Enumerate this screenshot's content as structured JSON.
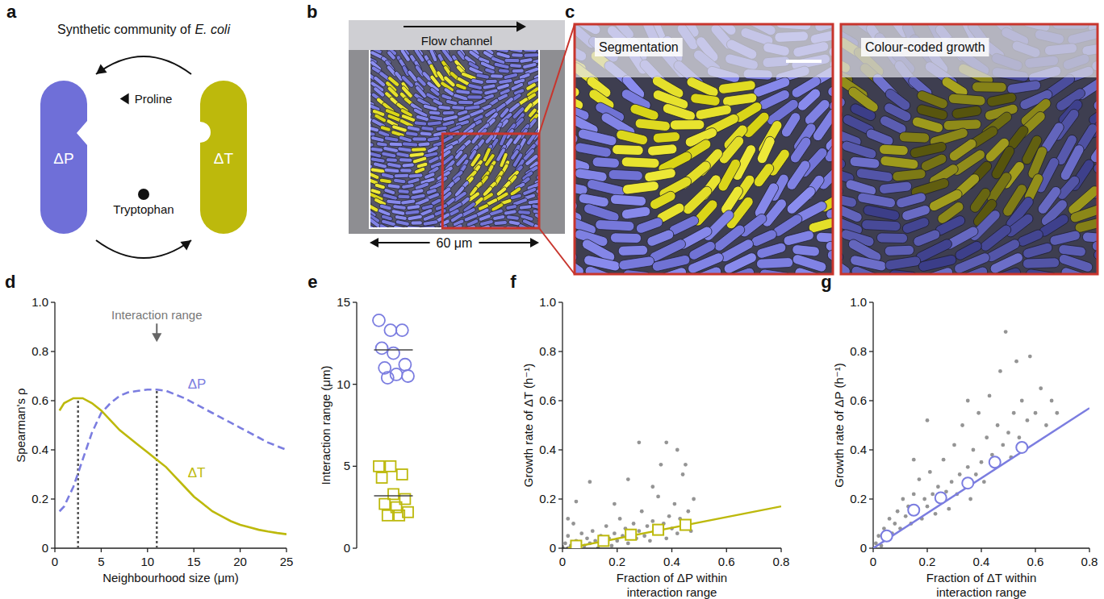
{
  "figure": {
    "panel_a": {
      "panel_label": "a",
      "title": "Synthetic community of",
      "organism": "E. coli",
      "nodes": [
        {
          "label": "ΔP",
          "color": "#6f6fd8"
        },
        {
          "label": "ΔT",
          "color": "#bdb90c"
        }
      ],
      "edges": [
        {
          "label": "Proline",
          "from": 1,
          "to": 0
        },
        {
          "label": "Tryptophan",
          "from": 0,
          "to": 1
        }
      ]
    },
    "panel_b": {
      "panel_label": "b",
      "channel_label": "Flow channel",
      "scale_label": "60 μm"
    },
    "panel_c": {
      "panel_label": "c",
      "views": [
        "Segmentation",
        "Colour-coded growth"
      ]
    }
  },
  "chart_data": [
    {
      "panel_label": "d",
      "type": "line",
      "x_label": "Neighbourhood size (μm)",
      "y_label": "Spearman's ρ",
      "x": [
        0.5,
        1,
        2,
        3,
        4,
        5,
        6,
        7,
        8,
        9,
        10,
        11,
        12,
        13,
        14,
        15,
        16,
        17,
        18,
        19,
        20,
        21,
        22,
        23,
        24,
        25
      ],
      "series": [
        {
          "name": "ΔP",
          "color": "#7b7de0",
          "line_style": "dashed",
          "values": [
            0.15,
            0.17,
            0.25,
            0.36,
            0.47,
            0.55,
            0.59,
            0.62,
            0.635,
            0.64,
            0.645,
            0.645,
            0.64,
            0.625,
            0.61,
            0.59,
            0.57,
            0.55,
            0.53,
            0.51,
            0.49,
            0.47,
            0.45,
            0.43,
            0.415,
            0.4
          ]
        },
        {
          "name": "ΔT",
          "color": "#bdb90c",
          "line_style": "solid",
          "values": [
            0.56,
            0.59,
            0.61,
            0.61,
            0.59,
            0.56,
            0.52,
            0.48,
            0.45,
            0.42,
            0.39,
            0.36,
            0.33,
            0.29,
            0.25,
            0.21,
            0.18,
            0.15,
            0.13,
            0.11,
            0.095,
            0.085,
            0.075,
            0.068,
            0.062,
            0.057
          ]
        }
      ],
      "xlim": [
        0,
        25
      ],
      "ylim": [
        0,
        1
      ],
      "xticks": [
        0,
        5,
        10,
        15,
        20,
        25
      ],
      "yticks": [
        0,
        0.2,
        0.4,
        0.6,
        0.8,
        {
          "value": 1,
          "label": "1.0"
        }
      ],
      "annotations": [
        {
          "text": "Interaction range",
          "x": 11,
          "y": 0.93
        }
      ],
      "reference_lines": [
        {
          "x": 2.5,
          "top": 0.61
        },
        {
          "x": 11,
          "top": 0.645
        }
      ]
    },
    {
      "panel_label": "e",
      "type": "strip",
      "y_label": "Interaction range (μm)",
      "ylim": [
        0,
        15
      ],
      "yticks": [
        0,
        5,
        10,
        15
      ],
      "tick_labels": "y",
      "series": [
        {
          "color": "#7b7de0",
          "marker": "circle",
          "values": [
            13.9,
            13.3,
            13.3,
            12.2,
            11.9,
            11.2,
            11.0,
            10.6,
            10.5,
            10.4
          ],
          "median": 12.1
        },
        {
          "color": "#bdb90c",
          "marker": "square",
          "values": [
            5.0,
            5.0,
            4.5,
            4.3,
            3.3,
            3.0,
            2.7,
            2.5,
            2.2,
            2.0,
            2.0
          ],
          "median": 3.2
        }
      ]
    },
    {
      "panel_label": "f",
      "type": "scatter",
      "x_label": "Fraction of ΔP within interaction range",
      "y_label": "Growth rate of ΔT (h⁻¹)",
      "xlim": [
        0,
        0.8
      ],
      "ylim": [
        0,
        1
      ],
      "xticks": [
        0,
        0.2,
        0.4,
        0.6,
        0.8
      ],
      "yticks": [
        0,
        0.2,
        0.4,
        0.6,
        0.8,
        {
          "value": 1,
          "label": "1.0"
        }
      ],
      "series": [
        {
          "type": "scatter",
          "marker": "dot",
          "color": "#000000",
          "x": [
            0,
            0.01,
            0.02,
            0.02,
            0.03,
            0.04,
            0.05,
            0.05,
            0.06,
            0.07,
            0.08,
            0.09,
            0.1,
            0.11,
            0.12,
            0.13,
            0.14,
            0.15,
            0.16,
            0.17,
            0.18,
            0.19,
            0.2,
            0.21,
            0.22,
            0.23,
            0.24,
            0.25,
            0.26,
            0.27,
            0.28,
            0.29,
            0.3,
            0.31,
            0.32,
            0.33,
            0.34,
            0.35,
            0.36,
            0.37,
            0.38,
            0.38,
            0.39,
            0.4,
            0.41,
            0.42,
            0.43,
            0.44,
            0.45,
            0.46,
            0.47,
            0.48,
            0.28,
            0.33,
            0.36,
            0.42,
            0.45,
            0.1,
            0.05,
            0.24,
            0.02,
            0.19
          ],
          "values": [
            0.005,
            0.02,
            0,
            0.05,
            0.01,
            0.1,
            0,
            0.03,
            0.02,
            0.06,
            0.01,
            0.04,
            0.02,
            0.07,
            0.03,
            0,
            0.05,
            0.02,
            0.09,
            0.04,
            0.01,
            0.06,
            0.03,
            0.12,
            0.05,
            0.08,
            0.02,
            0.06,
            0.1,
            0.04,
            0.07,
            0.15,
            0.05,
            0.09,
            0.03,
            0.11,
            0.07,
            0.21,
            0.06,
            0.1,
            0.43,
            0.04,
            0.13,
            0.08,
            0.18,
            0.06,
            0.12,
            0.3,
            0.09,
            0.15,
            0.07,
            0.2,
            0.43,
            0.25,
            0.34,
            0.4,
            0.34,
            0.27,
            0.19,
            0.28,
            0.12,
            0.18
          ]
        },
        {
          "type": "line",
          "color": "#bdb90c",
          "x": [
            0.02,
            0.8
          ],
          "values": [
            0,
            0.17
          ]
        },
        {
          "type": "scatter",
          "marker": "square",
          "color": "#bdb90c",
          "x": [
            0.05,
            0.15,
            0.25,
            0.35,
            0.45
          ],
          "values": [
            0.01,
            0.03,
            0.055,
            0.075,
            0.095
          ]
        }
      ]
    },
    {
      "panel_label": "g",
      "type": "scatter",
      "x_label": "Fraction of ΔT within interaction range",
      "y_label": "Growth rate of ΔP (h⁻¹)",
      "xlim": [
        0,
        0.8
      ],
      "ylim": [
        0,
        1
      ],
      "xticks": [
        0,
        0.2,
        0.4,
        0.6,
        0.8
      ],
      "yticks": [
        0,
        0.2,
        0.4,
        0.6,
        0.8,
        {
          "value": 1,
          "label": "1.0"
        }
      ],
      "series": [
        {
          "type": "scatter",
          "marker": "dot",
          "color": "#000000",
          "x": [
            0,
            0.01,
            0.02,
            0.03,
            0.04,
            0.05,
            0.06,
            0.07,
            0.08,
            0.09,
            0.1,
            0.11,
            0.12,
            0.13,
            0.14,
            0.15,
            0.16,
            0.17,
            0.18,
            0.19,
            0.2,
            0.21,
            0.22,
            0.23,
            0.24,
            0.25,
            0.26,
            0.27,
            0.28,
            0.29,
            0.3,
            0.31,
            0.32,
            0.33,
            0.34,
            0.35,
            0.36,
            0.37,
            0.38,
            0.39,
            0.4,
            0.41,
            0.42,
            0.43,
            0.44,
            0.45,
            0.46,
            0.47,
            0.48,
            0.49,
            0.5,
            0.51,
            0.52,
            0.53,
            0.54,
            0.55,
            0.56,
            0.57,
            0.58,
            0.6,
            0.62,
            0.64,
            0.66,
            0.68,
            0.2,
            0.15,
            0.35
          ],
          "values": [
            0,
            0.02,
            0.05,
            0.01,
            0.08,
            0.04,
            0.12,
            0.06,
            0.1,
            0.15,
            0.08,
            0.2,
            0.13,
            0.17,
            0.1,
            0.22,
            0.15,
            0.28,
            0.12,
            0.2,
            0.17,
            0.31,
            0.22,
            0.14,
            0.25,
            0.19,
            0.36,
            0.23,
            0.16,
            0.27,
            0.42,
            0.22,
            0.3,
            0.5,
            0.25,
            0.33,
            0.2,
            0.4,
            0.3,
            0.55,
            0.35,
            0.27,
            0.45,
            0.62,
            0.38,
            0.33,
            0.5,
            0.72,
            0.42,
            0.88,
            0.47,
            0.37,
            0.55,
            0.76,
            0.45,
            0.6,
            0.4,
            0.52,
            0.78,
            0.55,
            0.65,
            0.5,
            0.6,
            0.55,
            0.52,
            0.36,
            0.6
          ]
        },
        {
          "type": "line",
          "color": "#7b7de0",
          "x": [
            0,
            0.8
          ],
          "values": [
            0,
            0.57
          ]
        },
        {
          "type": "scatter",
          "marker": "circle",
          "color": "#7b7de0",
          "x": [
            0.05,
            0.15,
            0.25,
            0.35,
            0.45,
            0.55
          ],
          "values": [
            0.05,
            0.155,
            0.205,
            0.265,
            0.35,
            0.41
          ]
        }
      ]
    }
  ]
}
